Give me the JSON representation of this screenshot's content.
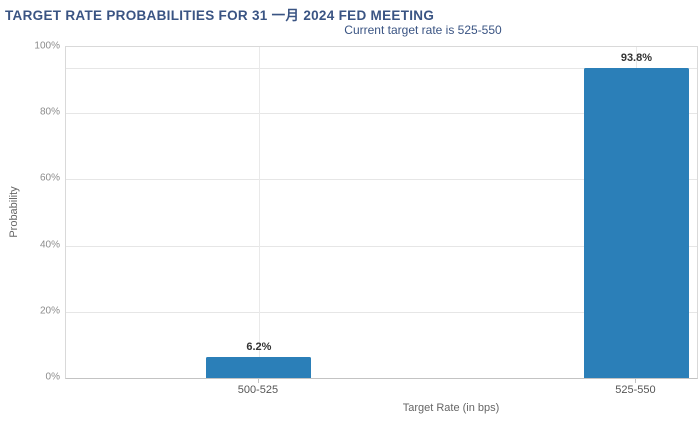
{
  "chart_data": {
    "type": "bar",
    "title": "TARGET RATE PROBABILITIES FOR 31 一月 2024 FED MEETING",
    "subtitle": "Current target rate is 525-550",
    "categories": [
      "500-525",
      "525-550"
    ],
    "values": [
      6.2,
      93.8
    ],
    "value_labels": [
      "6.2%",
      "93.8%"
    ],
    "xlabel": "Target Rate (in bps)",
    "ylabel": "Probability",
    "ylim": [
      0,
      100
    ],
    "ytick_step": 20,
    "ytick_labels": [
      "0%",
      "20%",
      "40%",
      "60%",
      "80%",
      "100%"
    ],
    "grid": "horizontal 20% lines, vertical lines at category centers, extra line at max value",
    "extra_gridline_value": 93.8,
    "legend": "none",
    "bar_color": "#2b7fb8",
    "title_color": "#3a5483",
    "subtitle_color": "#3a5483"
  }
}
